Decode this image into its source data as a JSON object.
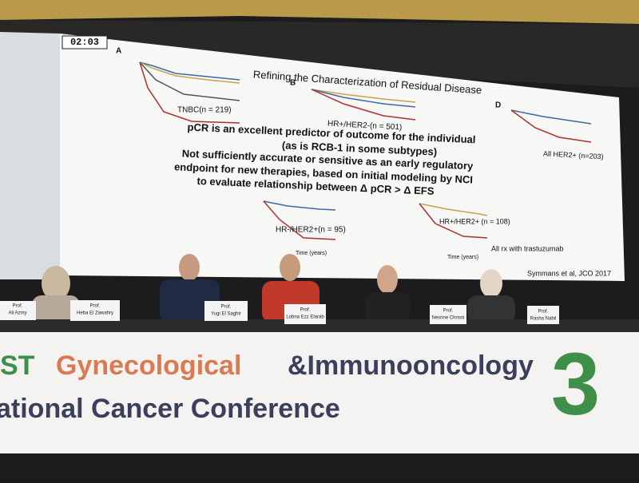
{
  "screen": {
    "timer": "02:03",
    "title": "Refining the Characterization of Residual Disease",
    "panel_labels": [
      "A",
      "B",
      "D"
    ],
    "curves": [
      "TNBC(n = 219)",
      "HR+/HER2-(n = 501)",
      "All HER2+ (n=203)",
      "HR-/HER2+(n = 95)",
      "HR+/HER2+ (n = 108)"
    ],
    "bullets": [
      "pCR is an excellent predictor of outcome for the individual",
      "(as is RCB-1 in some subtypes)",
      "Not sufficiently accurate or sensitive as an early regulatory",
      "endpoint for new therapies, based on initial modeling by NCI",
      "to evaluate relationship between Δ pCR > Δ EFS"
    ],
    "axis_label": "Time (years)",
    "note": "All rx with trastuzumab",
    "citation": "Symmans et al, JCO 2017"
  },
  "nameplates": [
    {
      "title": "Prof.",
      "name": "Ali Azmy"
    },
    {
      "title": "Prof.",
      "name": "Heba El Zawahry"
    },
    {
      "title": "Prof.",
      "name": "Yugi El Saghir"
    },
    {
      "title": "Prof.",
      "name": "Lobna Ezz Elarab"
    },
    {
      "title": "Prof.",
      "name": "Nesrine Chrisni"
    },
    {
      "title": "Prof.",
      "name": "Rasha Nabil"
    }
  ],
  "banner": {
    "line1": [
      "ST",
      "Gynecological",
      "&Immunooncology"
    ],
    "line2": "ational Cancer Conference",
    "logo": "3"
  }
}
